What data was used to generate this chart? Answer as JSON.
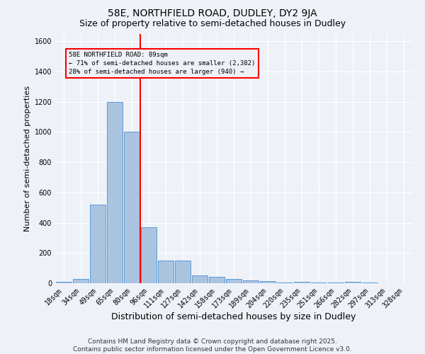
{
  "title1": "58E, NORTHFIELD ROAD, DUDLEY, DY2 9JA",
  "title2": "Size of property relative to semi-detached houses in Dudley",
  "xlabel": "Distribution of semi-detached houses by size in Dudley",
  "ylabel": "Number of semi-detached properties",
  "bar_labels": [
    "18sqm",
    "34sqm",
    "49sqm",
    "65sqm",
    "80sqm",
    "96sqm",
    "111sqm",
    "127sqm",
    "142sqm",
    "158sqm",
    "173sqm",
    "189sqm",
    "204sqm",
    "220sqm",
    "235sqm",
    "251sqm",
    "266sqm",
    "282sqm",
    "297sqm",
    "313sqm",
    "328sqm"
  ],
  "bar_values": [
    10,
    30,
    520,
    1200,
    1000,
    370,
    150,
    150,
    50,
    40,
    30,
    20,
    15,
    5,
    10,
    5,
    3,
    10,
    3,
    2,
    2
  ],
  "bar_color": "#aac4e0",
  "bar_edge_color": "#5b9bd5",
  "ylim": [
    0,
    1650
  ],
  "yticks": [
    0,
    200,
    400,
    600,
    800,
    1000,
    1200,
    1400,
    1600
  ],
  "property_line_x": 4.5,
  "property_line_label": "58E NORTHFIELD ROAD: 89sqm",
  "annotation_line1": "← 71% of semi-detached houses are smaller (2,382)",
  "annotation_line2": "28% of semi-detached houses are larger (940) →",
  "annotation_box_color": "red",
  "vline_color": "red",
  "bg_color": "#eef2f8",
  "footer1": "Contains HM Land Registry data © Crown copyright and database right 2025.",
  "footer2": "Contains public sector information licensed under the Open Government Licence v3.0.",
  "title1_fontsize": 10,
  "title2_fontsize": 9,
  "xlabel_fontsize": 9,
  "ylabel_fontsize": 8,
  "tick_fontsize": 7,
  "footer_fontsize": 6.5
}
